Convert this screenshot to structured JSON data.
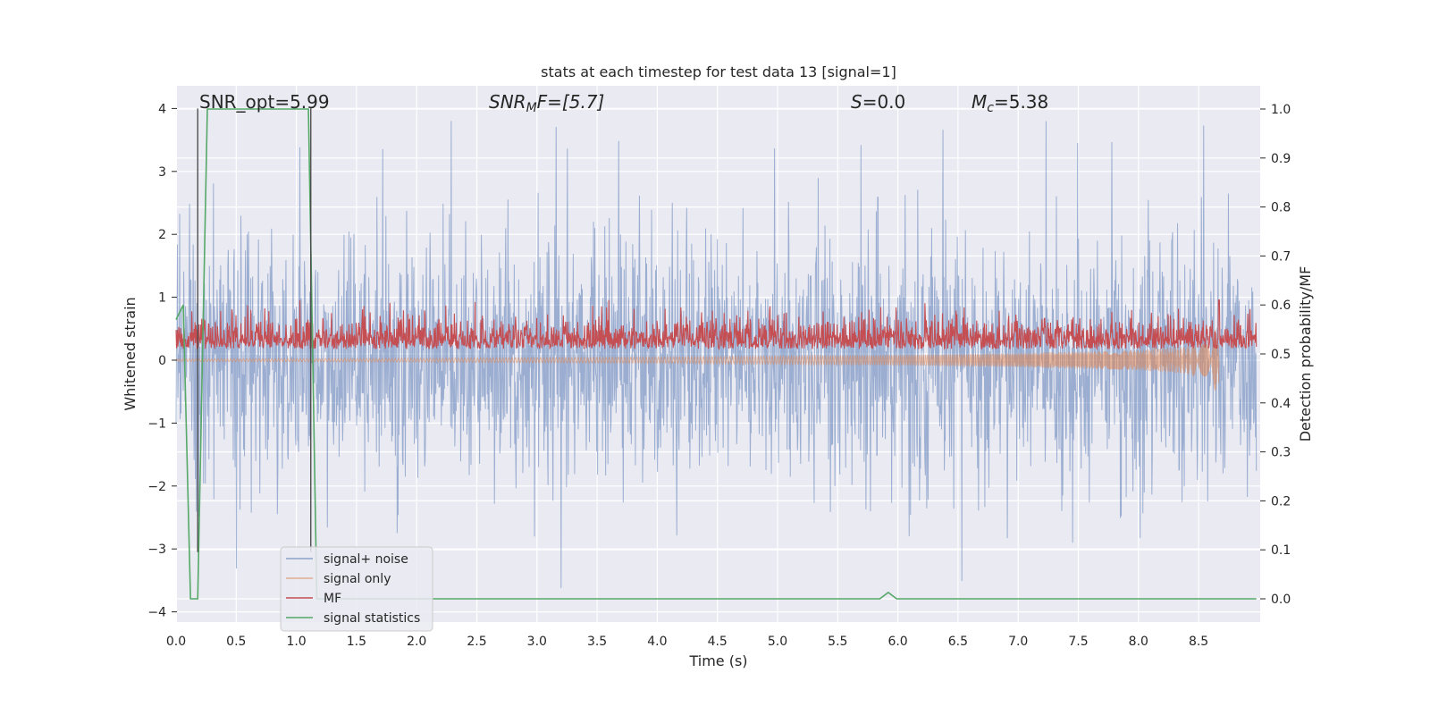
{
  "chart_data": {
    "type": "line",
    "title": "stats at each timestep for test data 13 [signal=1]",
    "xlabel": "Time (s)",
    "ylabel_left": "Whitened strain",
    "ylabel_right": "Detection probability/MF",
    "xlim": [
      0.0,
      9.0
    ],
    "ylim_left": [
      -4.3,
      4.4
    ],
    "ylim_right": [
      -0.05,
      1.05
    ],
    "x_ticks": [
      "0.0",
      "0.5",
      "1.0",
      "1.5",
      "2.0",
      "2.5",
      "3.0",
      "3.5",
      "4.0",
      "4.5",
      "5.0",
      "5.5",
      "6.0",
      "6.5",
      "7.0",
      "7.5",
      "8.0",
      "8.5"
    ],
    "y_left_ticks": [
      "4",
      "3",
      "2",
      "1",
      "0",
      "−1",
      "−2",
      "−3",
      "−4"
    ],
    "y_right_ticks": [
      "1.0",
      "0.9",
      "0.8",
      "0.7",
      "0.6",
      "0.5",
      "0.4",
      "0.3",
      "0.2",
      "0.1",
      "0.0"
    ],
    "grid": true,
    "legend_position": "lower-left",
    "annotations": {
      "snr_opt": "SNR_opt=5.99",
      "snr_mf_pre": "SNR",
      "snr_mf_sub": "M",
      "snr_mf_post": "F=[5.7]",
      "s_label": "S",
      "s_value": "=0.0",
      "mc_label": "M",
      "mc_sub": "c",
      "mc_value": "=5.38"
    },
    "vlines_x": [
      0.18,
      1.12
    ],
    "colors": {
      "signal_noise": "#4c72b0",
      "signal_only": "#dd8452",
      "mf": "#c44e52",
      "stats": "#55a868",
      "bg": "#eaeaf2",
      "vline": "#444444"
    },
    "series": [
      {
        "name": "signal+ noise",
        "axis": "left",
        "noise_std": 0.95,
        "spike_max": 4.0
      },
      {
        "name": "signal only",
        "axis": "left",
        "envelope_t": [
          0.0,
          2.0,
          4.0,
          6.0,
          7.0,
          8.0,
          8.4,
          8.6,
          8.67
        ],
        "envelope_amp": [
          0.02,
          0.03,
          0.05,
          0.08,
          0.11,
          0.16,
          0.22,
          0.34,
          0.62
        ]
      },
      {
        "name": "MF",
        "axis": "right",
        "base": 0.5,
        "peak_x": 8.67,
        "peak_y": 0.61
      },
      {
        "name": "signal statistics",
        "axis": "right",
        "x": [
          0.0,
          0.06,
          0.12,
          0.18,
          0.26,
          1.1,
          1.13,
          1.17,
          1.3,
          5.85,
          5.92,
          5.99,
          8.98
        ],
        "y": [
          0.57,
          0.6,
          0.0,
          0.0,
          1.0,
          1.0,
          0.58,
          0.0,
          0.0,
          0.0,
          0.013,
          0.0,
          0.0
        ]
      }
    ]
  }
}
